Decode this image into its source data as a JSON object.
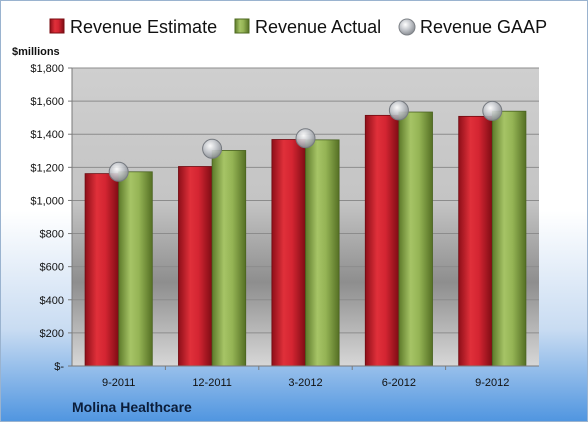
{
  "chart_data": {
    "type": "bar",
    "categories": [
      "9-2011",
      "12-2011",
      "3-2012",
      "6-2012",
      "9-2012"
    ],
    "series": [
      {
        "name": "Revenue Estimate",
        "kind": "bar",
        "color": "#cc1f2b",
        "values": [
          1162,
          1205,
          1368,
          1514,
          1508
        ]
      },
      {
        "name": "Revenue Actual",
        "kind": "bar",
        "color": "#8aa84a",
        "values": [
          1173,
          1302,
          1366,
          1534,
          1539
        ]
      },
      {
        "name": "Revenue GAAP",
        "kind": "marker",
        "color": "#b8bcc2",
        "values": [
          1173,
          1312,
          1376,
          1544,
          1541
        ]
      }
    ],
    "ylim": [
      0,
      1800
    ],
    "yticks": [
      0,
      200,
      400,
      600,
      800,
      1000,
      1200,
      1400,
      1600,
      1800
    ],
    "ytick_labels": [
      "$-",
      "$200",
      "$400",
      "$600",
      "$800",
      "$1,000",
      "$1,200",
      "$1,400",
      "$1,600",
      "$1,800"
    ],
    "ylabel": "$millions",
    "grid": true,
    "legend_position": "top"
  },
  "company": "Molina Healthcare"
}
